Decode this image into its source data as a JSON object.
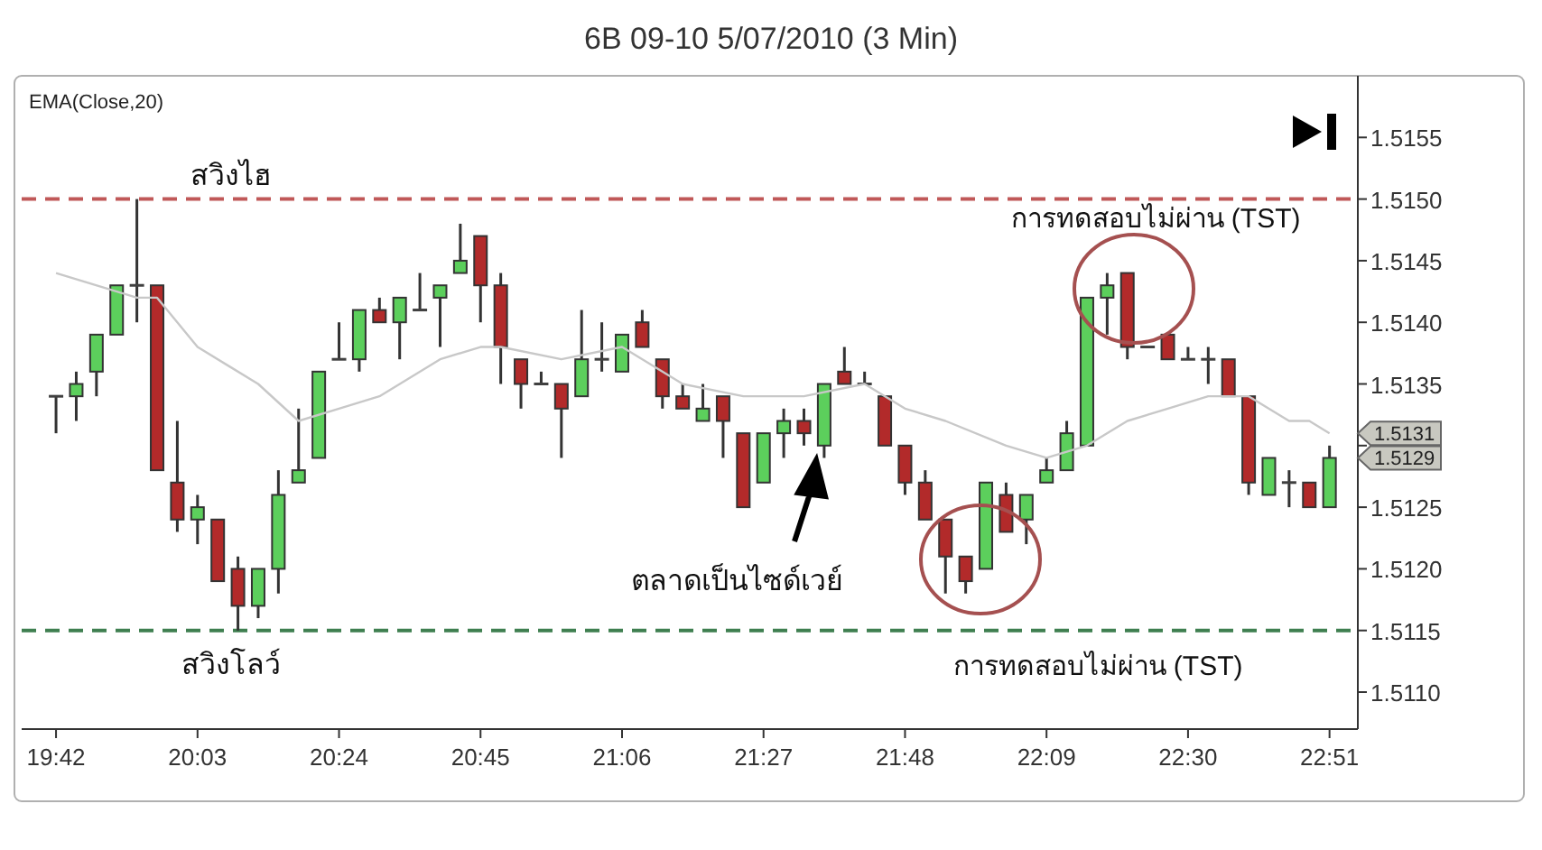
{
  "chart_data": {
    "type": "candlestick",
    "title": "6B 09-10  5/07/2010 (3 Min)",
    "xlim": [
      19.615,
      22.92
    ],
    "ylim": [
      1.5107,
      1.516
    ],
    "xticks": [
      {
        "value": 19.7,
        "label": "19:42"
      },
      {
        "value": 20.05,
        "label": "20:03"
      },
      {
        "value": 20.4,
        "label": "20:24"
      },
      {
        "value": 20.75,
        "label": "20:45"
      },
      {
        "value": 21.1,
        "label": "21:06"
      },
      {
        "value": 21.45,
        "label": "21:27"
      },
      {
        "value": 21.8,
        "label": "21:48"
      },
      {
        "value": 22.15,
        "label": "22:09"
      },
      {
        "value": 22.5,
        "label": "22:30"
      },
      {
        "value": 22.85,
        "label": "22:51"
      }
    ],
    "yticks": [
      {
        "value": 1.511,
        "label": "1.5110"
      },
      {
        "value": 1.5115,
        "label": "1.5115"
      },
      {
        "value": 1.512,
        "label": "1.5120"
      },
      {
        "value": 1.5125,
        "label": "1.5125"
      },
      {
        "value": 1.513,
        "label": null
      },
      {
        "value": 1.5135,
        "label": "1.5135"
      },
      {
        "value": 1.514,
        "label": "1.5140"
      },
      {
        "value": 1.5145,
        "label": "1.5145"
      },
      {
        "value": 1.515,
        "label": "1.5150"
      },
      {
        "value": 1.5155,
        "label": "1.5155"
      }
    ],
    "series": [
      {
        "x": [
          19.7,
          19.75,
          19.8,
          19.85,
          19.9,
          19.95,
          20,
          20.05,
          20.1,
          20.15,
          20.2,
          20.25,
          20.3,
          20.35,
          20.4,
          20.45,
          20.5,
          20.55,
          20.6,
          20.65,
          20.7,
          20.75,
          20.8,
          20.85,
          20.9,
          20.95,
          21,
          21.05,
          21.1,
          21.15,
          21.2,
          21.25,
          21.3,
          21.35,
          21.4,
          21.45,
          21.5,
          21.55,
          21.6,
          21.65,
          21.7,
          21.75,
          21.8,
          21.85,
          21.9,
          21.95,
          22,
          22.05,
          22.1,
          22.15,
          22.2,
          22.25,
          22.3,
          22.35,
          22.4,
          22.45,
          22.5,
          22.55,
          22.6,
          22.65,
          22.7,
          22.75,
          22.8,
          22.85
        ],
        "ohlc": [
          [
            1.5134,
            1.5134,
            1.5131,
            1.5134
          ],
          [
            1.5134,
            1.5136,
            1.5132,
            1.5135
          ],
          [
            1.5136,
            1.5139,
            1.5134,
            1.5139
          ],
          [
            1.5139,
            1.5143,
            1.5139,
            1.5143
          ],
          [
            1.5143,
            1.515,
            1.514,
            1.5143
          ],
          [
            1.5143,
            1.5143,
            1.5128,
            1.5128
          ],
          [
            1.5127,
            1.5132,
            1.5123,
            1.5124
          ],
          [
            1.5124,
            1.5126,
            1.5122,
            1.5125
          ],
          [
            1.5124,
            1.5124,
            1.5119,
            1.5119
          ],
          [
            1.512,
            1.5121,
            1.5115,
            1.5117
          ],
          [
            1.5117,
            1.512,
            1.5116,
            1.512
          ],
          [
            1.512,
            1.5128,
            1.5118,
            1.5126
          ],
          [
            1.5127,
            1.5133,
            1.5127,
            1.5128
          ],
          [
            1.5129,
            1.5136,
            1.5129,
            1.5136
          ],
          [
            1.5137,
            1.514,
            1.5137,
            1.5137
          ],
          [
            1.5137,
            1.5141,
            1.5136,
            1.5141
          ],
          [
            1.5141,
            1.5142,
            1.514,
            1.514
          ],
          [
            1.514,
            1.5142,
            1.5137,
            1.5142
          ],
          [
            1.5141,
            1.5144,
            1.5141,
            1.5141
          ],
          [
            1.5142,
            1.5143,
            1.5138,
            1.5143
          ],
          [
            1.5144,
            1.5148,
            1.5144,
            1.5145
          ],
          [
            1.5147,
            1.5147,
            1.514,
            1.5143
          ],
          [
            1.5143,
            1.5144,
            1.5135,
            1.5138
          ],
          [
            1.5137,
            1.5137,
            1.5133,
            1.5135
          ],
          [
            1.5135,
            1.5136,
            1.5135,
            1.5135
          ],
          [
            1.5135,
            1.5135,
            1.5129,
            1.5133
          ],
          [
            1.5134,
            1.5141,
            1.5134,
            1.5137
          ],
          [
            1.5137,
            1.514,
            1.5136,
            1.5137
          ],
          [
            1.5136,
            1.5139,
            1.5136,
            1.5139
          ],
          [
            1.514,
            1.5141,
            1.5138,
            1.5138
          ],
          [
            1.5137,
            1.5137,
            1.5133,
            1.5134
          ],
          [
            1.5134,
            1.5135,
            1.5133,
            1.5133
          ],
          [
            1.5132,
            1.5135,
            1.5132,
            1.5133
          ],
          [
            1.5134,
            1.5134,
            1.5129,
            1.5132
          ],
          [
            1.5131,
            1.5131,
            1.5125,
            1.5125
          ],
          [
            1.5127,
            1.5131,
            1.5127,
            1.5131
          ],
          [
            1.5131,
            1.5133,
            1.5129,
            1.5132
          ],
          [
            1.5132,
            1.5133,
            1.513,
            1.5131
          ],
          [
            1.513,
            1.5135,
            1.5129,
            1.5135
          ],
          [
            1.5136,
            1.5138,
            1.5135,
            1.5135
          ],
          [
            1.5135,
            1.5136,
            1.5135,
            1.5135
          ],
          [
            1.5134,
            1.5134,
            1.513,
            1.513
          ],
          [
            1.513,
            1.513,
            1.5126,
            1.5127
          ],
          [
            1.5127,
            1.5128,
            1.5124,
            1.5124
          ],
          [
            1.5124,
            1.5124,
            1.5118,
            1.5121
          ],
          [
            1.5121,
            1.5121,
            1.5118,
            1.5119
          ],
          [
            1.512,
            1.5127,
            1.512,
            1.5127
          ],
          [
            1.5126,
            1.5127,
            1.5123,
            1.5123
          ],
          [
            1.5124,
            1.5126,
            1.5122,
            1.5126
          ],
          [
            1.5127,
            1.5129,
            1.5127,
            1.5128
          ],
          [
            1.5128,
            1.5132,
            1.5128,
            1.5131
          ],
          [
            1.513,
            1.5142,
            1.513,
            1.5142
          ],
          [
            1.5142,
            1.5144,
            1.5139,
            1.5143
          ],
          [
            1.5144,
            1.5144,
            1.5137,
            1.5138
          ],
          [
            1.5138,
            1.5138,
            1.5138,
            1.5138
          ],
          [
            1.5139,
            1.5139,
            1.5137,
            1.5137
          ],
          [
            1.5137,
            1.5138,
            1.5137,
            1.5137
          ],
          [
            1.5137,
            1.5138,
            1.5135,
            1.5137
          ],
          [
            1.5137,
            1.5137,
            1.5134,
            1.5134
          ],
          [
            1.5134,
            1.5134,
            1.5126,
            1.5127
          ],
          [
            1.5126,
            1.5129,
            1.5126,
            1.5129
          ],
          [
            1.5127,
            1.5128,
            1.5125,
            1.5127
          ],
          [
            1.5127,
            1.5127,
            1.5125,
            1.5125
          ],
          [
            1.5125,
            1.513,
            1.5125,
            1.5129
          ]
        ],
        "colors": [
          "#404040",
          "#5ccf5c",
          "#5ccf5c",
          "#5ccf5c",
          "#404040",
          "#b22a2a",
          "#b22a2a",
          "#5ccf5c",
          "#b22a2a",
          "#b22a2a",
          "#5ccf5c",
          "#5ccf5c",
          "#5ccf5c",
          "#5ccf5c",
          "#404040",
          "#5ccf5c",
          "#b22a2a",
          "#5ccf5c",
          "#404040",
          "#5ccf5c",
          "#5ccf5c",
          "#b22a2a",
          "#b22a2a",
          "#b22a2a",
          "#404040",
          "#b22a2a",
          "#5ccf5c",
          "#404040",
          "#5ccf5c",
          "#b22a2a",
          "#b22a2a",
          "#b22a2a",
          "#5ccf5c",
          "#b22a2a",
          "#b22a2a",
          "#5ccf5c",
          "#5ccf5c",
          "#b22a2a",
          "#5ccf5c",
          "#b22a2a",
          "#404040",
          "#b22a2a",
          "#b22a2a",
          "#b22a2a",
          "#b22a2a",
          "#b22a2a",
          "#5ccf5c",
          "#b22a2a",
          "#5ccf5c",
          "#5ccf5c",
          "#5ccf5c",
          "#5ccf5c",
          "#5ccf5c",
          "#b22a2a",
          "#404040",
          "#b22a2a",
          "#404040",
          "#404040",
          "#b22a2a",
          "#b22a2a",
          "#5ccf5c",
          "#404040",
          "#b22a2a",
          "#5ccf5c"
        ]
      },
      {
        "type": "line",
        "color": "#c8c8c8",
        "x": [
          19.7,
          19.9,
          19.95,
          20.05,
          20.2,
          20.3,
          20.4,
          20.5,
          20.65,
          20.75,
          20.8,
          20.95,
          21.1,
          21.25,
          21.4,
          21.55,
          21.7,
          21.8,
          21.9,
          22.05,
          22.15,
          22.25,
          22.35,
          22.45,
          22.55,
          22.65,
          22.75,
          22.8,
          22.85
        ],
        "values": [
          1.5144,
          1.5142,
          1.5142,
          1.5138,
          1.5135,
          1.5132,
          1.5133,
          1.5134,
          1.5137,
          1.5138,
          1.5138,
          1.5137,
          1.5138,
          1.5135,
          1.5134,
          1.5134,
          1.5135,
          1.5133,
          1.5132,
          1.513,
          1.5129,
          1.513,
          1.5132,
          1.5133,
          1.5134,
          1.5134,
          1.5132,
          1.5132,
          1.5131
        ]
      }
    ],
    "ref_lines": [
      {
        "axis": "y",
        "value": 1.515,
        "label": "สวิงไฮ",
        "color": "#c05858",
        "line_style": "dashed"
      },
      {
        "axis": "y",
        "value": 1.5115,
        "label": "สวิงโลว์",
        "color": "#3f7f50",
        "line_style": "dashed"
      }
    ],
    "annotations": [
      "EMA(Close,20)",
      "ตลาดเป็นไซด์เวย์",
      "การทดสอบไม่ผ่าน (TST)",
      "การทดสอบไม่ผ่าน (TST)",
      "1.5131",
      "1.5129"
    ],
    "grid": false
  }
}
